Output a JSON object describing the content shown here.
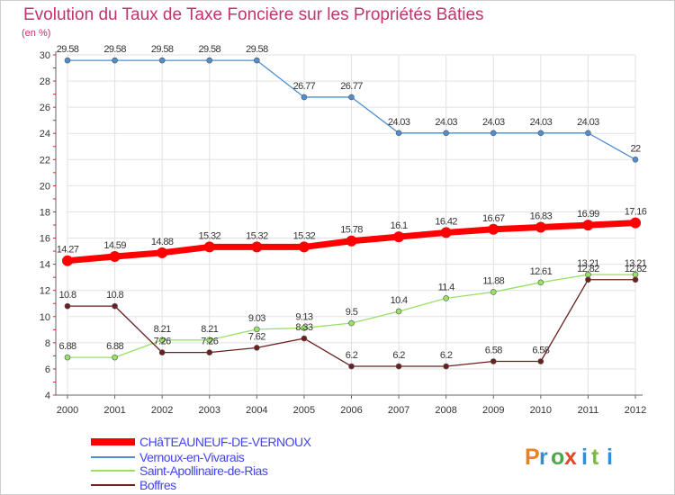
{
  "title": "Evolution du Taux de Taxe Foncière sur les Propriétés Bâties",
  "unit_label": "(en %)",
  "chart_data": {
    "type": "line",
    "title": "Evolution du Taux de Taxe Foncière sur les Propriétés Bâties",
    "ylabel": "(en %)",
    "xlabel": "",
    "ylim": [
      4,
      30
    ],
    "yticks": [
      "4",
      "6",
      "8",
      "10",
      "12",
      "14",
      "16",
      "18",
      "20",
      "22",
      "24",
      "26",
      "28",
      "30"
    ],
    "x": [
      "2000",
      "2001",
      "2002",
      "2003",
      "2004",
      "2005",
      "2006",
      "2007",
      "2008",
      "2009",
      "2010",
      "2011",
      "2012"
    ],
    "grid": true,
    "legend_position": "bottom-left",
    "series": [
      {
        "name": "CHâTEAUNEUF-DE-VERNOUX",
        "color": "#ff0000",
        "values": [
          14.27,
          14.59,
          14.88,
          15.32,
          15.32,
          15.32,
          15.78,
          16.1,
          16.42,
          16.67,
          16.83,
          16.99,
          17.16
        ],
        "labels": [
          "14.27",
          "14.59",
          "14.88",
          "15.32",
          "15.32",
          "15.32",
          "15.78",
          "16.1",
          "16.42",
          "16.67",
          "16.83",
          "16.99",
          "17.16"
        ]
      },
      {
        "name": "Vernoux-en-Vivarais",
        "color": "#4f8fcf",
        "values": [
          29.58,
          29.58,
          29.58,
          29.58,
          29.58,
          26.77,
          26.77,
          24.03,
          24.03,
          24.03,
          24.03,
          24.03,
          22
        ],
        "labels": [
          "29.58",
          "29.58",
          "29.58",
          "29.58",
          "29.58",
          "26.77",
          "26.77",
          "24.03",
          "24.03",
          "24.03",
          "24.03",
          "24.03",
          "22"
        ]
      },
      {
        "name": "Saint-Apollinaire-de-Rias",
        "color": "#99e066",
        "values": [
          6.88,
          6.88,
          8.21,
          8.21,
          9.03,
          9.13,
          9.5,
          10.4,
          11.4,
          11.88,
          12.61,
          13.21,
          13.21
        ],
        "labels": [
          "6.88",
          "6.88",
          "8.21",
          "8.21",
          "9.03",
          "9.13",
          "9.5",
          "10.4",
          "11.4",
          "11.88",
          "12.61",
          "13.21",
          "13.21"
        ]
      },
      {
        "name": "Boffres",
        "color": "#6b1f1f",
        "values": [
          10.8,
          10.8,
          7.26,
          7.26,
          7.62,
          8.33,
          6.2,
          6.2,
          6.2,
          6.58,
          6.58,
          12.82,
          12.82
        ],
        "labels": [
          "10.8",
          "10.8",
          "7.26",
          "7.26",
          "7.62",
          "8.33",
          "6.2",
          "6.2",
          "6.2",
          "6.58",
          "6.58",
          "12.82",
          "12.82"
        ]
      }
    ],
    "legend": [
      {
        "label": "CHâTEAUNEUF-DE-VERNOUX",
        "text_color": "#4444ee"
      },
      {
        "label": "Vernoux-en-Vivarais",
        "text_color": "#4444ee"
      },
      {
        "label": "Saint-Apollinaire-de-Rias",
        "text_color": "#4444ee"
      },
      {
        "label": "Boffres",
        "text_color": "#4444ee"
      }
    ]
  },
  "logo": {
    "letters": [
      "P",
      "r",
      "o",
      "x",
      "i",
      "t",
      "i"
    ],
    "colors": [
      "#e8821e",
      "#2f8fd8",
      "#4aa84a",
      "#e04a2a",
      "#2f8fd8",
      "#7dbb3a",
      "#2f8fd8"
    ]
  }
}
